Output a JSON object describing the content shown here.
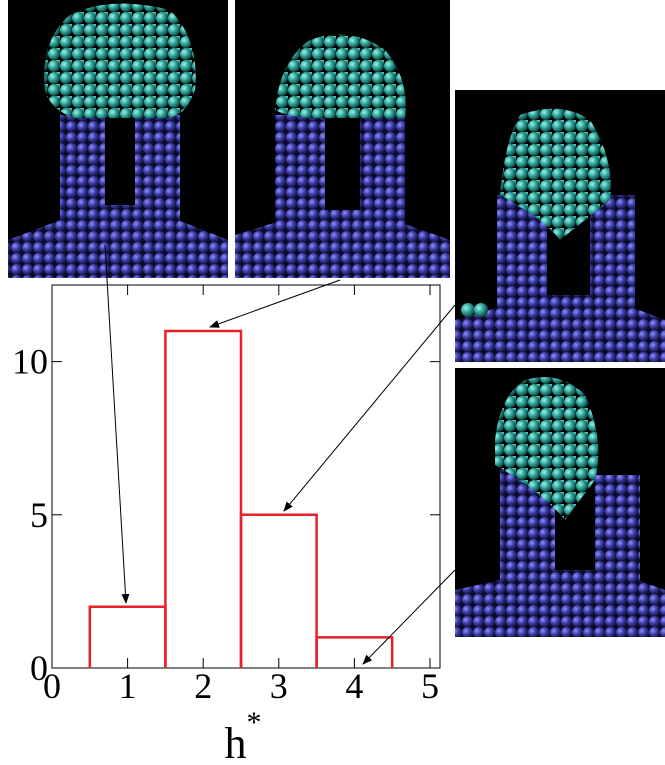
{
  "chart_data": {
    "type": "histogram",
    "x_label": {
      "base": "h",
      "superscript": "*"
    },
    "bins": [
      0.5,
      1.5,
      2.5,
      3.5,
      4.5
    ],
    "values": [
      2,
      11,
      5,
      1
    ],
    "color": "#e8202a",
    "xlim": [
      0,
      5
    ],
    "xticks": [
      0,
      1,
      2,
      3,
      4,
      5
    ],
    "ylim": [
      0,
      12.5
    ],
    "yticks": [
      0,
      5,
      10
    ],
    "grid": false
  }
}
